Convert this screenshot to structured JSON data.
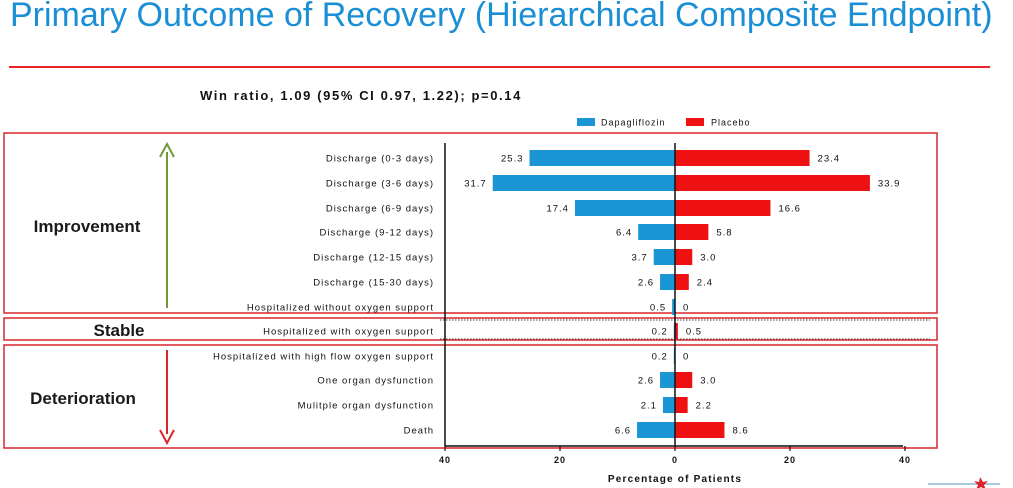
{
  "page": {
    "title": "Primary Outcome of Recovery (Hierarchical Composite Endpoint)",
    "win_ratio": "Win ratio, 1.09  (95%  CI 0.97, 1.22); p=0.14"
  },
  "groups": {
    "improvement": "Improvement",
    "stable": "Stable",
    "deterioration": "Deterioration"
  },
  "colors": {
    "dapagliflozin": "#1a96d4",
    "placebo": "#ee1111",
    "frame": "#d9262c",
    "arrow_up": "#6f9a3a",
    "arrow_down": "#d9262c"
  },
  "chart_data": {
    "type": "bar",
    "orientation": "horizontal-diverging",
    "title": "Primary Outcome of Recovery (Hierarchical Composite Endpoint)",
    "xlabel": "Percentage of Patients",
    "xlim": [
      -40,
      40
    ],
    "xticks": [
      -40,
      -20,
      0,
      20,
      40
    ],
    "xtick_labels": [
      "40",
      "20",
      "0",
      "20",
      "40"
    ],
    "categories": [
      "Discharge (0-3 days)",
      "Discharge (3-6 days)",
      "Discharge (6-9 days)",
      "Discharge (9-12 days)",
      "Discharge (12-15 days)",
      "Discharge (15-30 days)",
      "Hospitalized without oxygen support",
      "Hospitalized with oxygen support",
      "Hospitalized with high flow oxygen support",
      "One organ dysfunction",
      "Mulitple organ dysfunction",
      "Death"
    ],
    "series": [
      {
        "name": "Dapagliflozin",
        "direction": "left",
        "values": [
          25.3,
          31.7,
          17.4,
          6.4,
          3.7,
          2.6,
          0.5,
          0.2,
          0.2,
          2.6,
          2.1,
          6.6
        ],
        "labels": [
          "25.3",
          "31.7",
          "17.4",
          "6.4",
          "3.7",
          "2.6",
          "0.5",
          "0.2",
          "0.2",
          "2.6",
          "2.1",
          "6.6"
        ]
      },
      {
        "name": "Placebo",
        "direction": "right",
        "values": [
          23.4,
          33.9,
          16.6,
          5.8,
          3.0,
          2.4,
          0,
          0.5,
          0,
          3.0,
          2.2,
          8.6
        ],
        "labels": [
          "23.4",
          "33.9",
          "16.6",
          "5.8",
          "3.0",
          "2.4",
          "0",
          "0.5",
          "0",
          "3.0",
          "2.2",
          "8.6"
        ]
      }
    ],
    "legend": [
      "Dapagliflozin",
      "Placebo"
    ],
    "legend_position": "top-right"
  }
}
